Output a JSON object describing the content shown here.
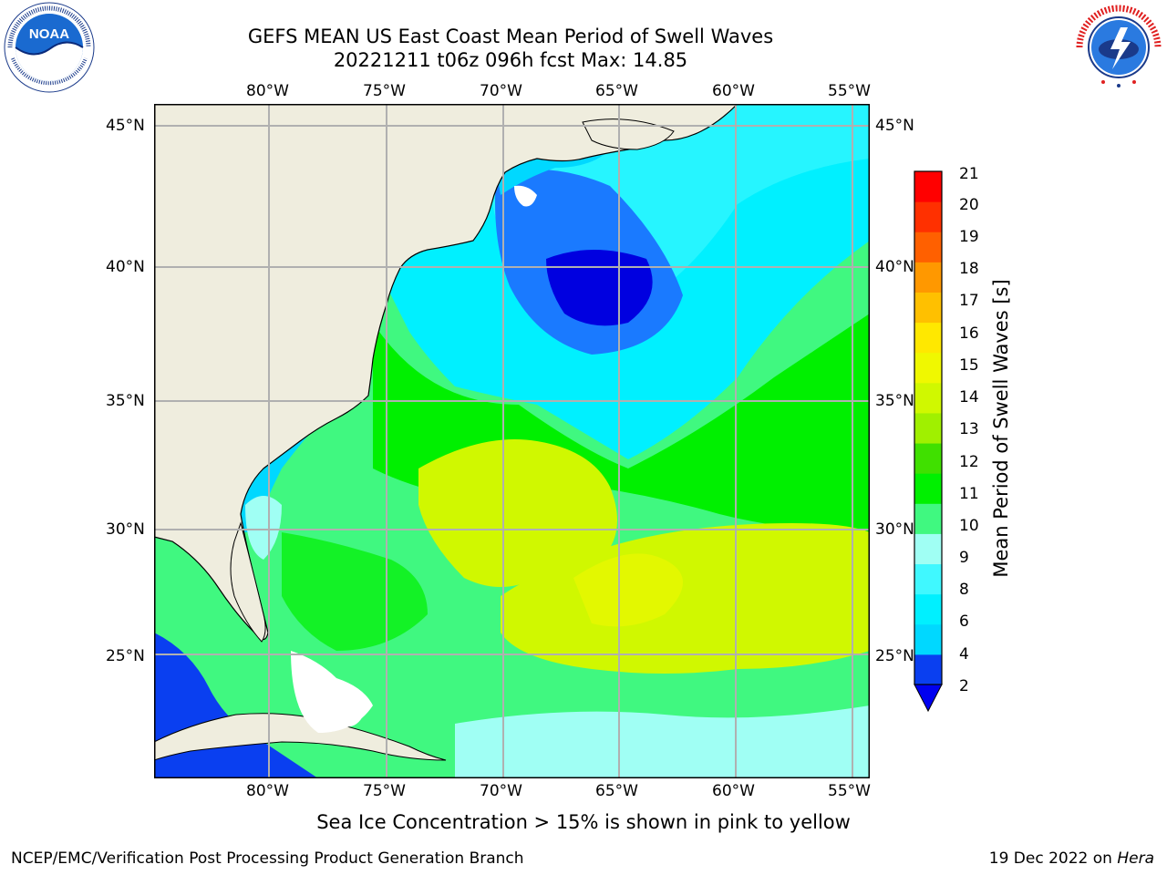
{
  "header": {
    "title_line1": "GEFS MEAN US East Coast Mean Period of Swell Waves",
    "title_line2": "20221211 t06z 096h fcst   Max: 14.85"
  },
  "logos": {
    "left": {
      "icon": "noaa-logo",
      "text": "NOAA"
    },
    "right": {
      "icon": "nws-logo",
      "text": "NATIONAL WEATHER SERVICE"
    }
  },
  "map": {
    "lon_ticks": [
      "80°W",
      "75°W",
      "70°W",
      "65°W",
      "60°W",
      "55°W"
    ],
    "lat_ticks": [
      "45°N",
      "40°N",
      "35°N",
      "30°N",
      "25°N"
    ],
    "land_color": "#efedde",
    "grid_color": "#b0b0b0"
  },
  "colorbar": {
    "title": "Mean Period of Swell Waves [s]",
    "labels": [
      "21",
      "20",
      "19",
      "18",
      "17",
      "16",
      "15",
      "14",
      "13",
      "12",
      "11",
      "10",
      "9",
      "8",
      "6",
      "4",
      "2"
    ],
    "colors_bottom_to_top": [
      "#0a3ff0",
      "#00d8ff",
      "#00f0ff",
      "#40f8ff",
      "#a0fff4",
      "#40f880",
      "#00f000",
      "#40e000",
      "#a0f000",
      "#d0f800",
      "#f0f800",
      "#ffe800",
      "#ffc000",
      "#ff9800",
      "#ff6000",
      "#ff3000",
      "#ff0000"
    ],
    "extend_color": "#0000f0"
  },
  "caption": "Sea Ice Concentration > 15% is shown in pink to yellow",
  "footer": {
    "left": "NCEP/EMC/Verification Post Processing Product Generation Branch",
    "date": "19 Dec 2022 on",
    "host": "Hera"
  }
}
